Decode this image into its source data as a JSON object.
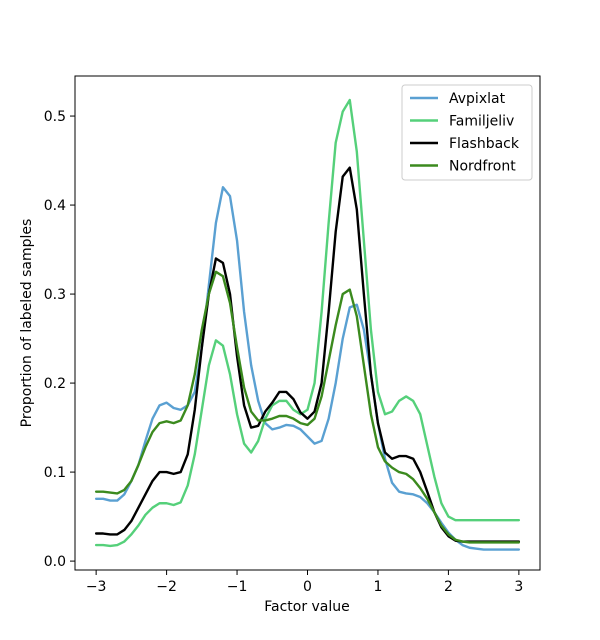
{
  "chart_data": {
    "type": "line",
    "title": "",
    "xlabel": "Factor value",
    "ylabel": "Proportion of labeled samples",
    "xlim": [
      -3.3,
      3.3
    ],
    "ylim": [
      -0.01,
      0.545
    ],
    "xticks": [
      -3,
      -2,
      -1,
      0,
      1,
      2,
      3
    ],
    "yticks": [
      0.0,
      0.1,
      0.2,
      0.3,
      0.4,
      0.5
    ],
    "grid": false,
    "legend": "top-right",
    "x": [
      -3.0,
      -2.9,
      -2.8,
      -2.7,
      -2.6,
      -2.5,
      -2.4,
      -2.3,
      -2.2,
      -2.1,
      -2.0,
      -1.9,
      -1.8,
      -1.7,
      -1.6,
      -1.5,
      -1.4,
      -1.3,
      -1.2,
      -1.1,
      -1.0,
      -0.9,
      -0.8,
      -0.7,
      -0.6,
      -0.5,
      -0.4,
      -0.3,
      -0.2,
      -0.1,
      0.0,
      0.1,
      0.2,
      0.3,
      0.4,
      0.5,
      0.6,
      0.7,
      0.8,
      0.9,
      1.0,
      1.1,
      1.2,
      1.3,
      1.4,
      1.5,
      1.6,
      1.7,
      1.8,
      1.9,
      2.0,
      2.1,
      2.2,
      2.3,
      2.4,
      2.5,
      2.6,
      2.7,
      2.8,
      2.9,
      3.0
    ],
    "series": [
      {
        "name": "Avpixlat",
        "color": "#5aa0d2",
        "values": [
          0.07,
          0.07,
          0.068,
          0.068,
          0.075,
          0.09,
          0.108,
          0.135,
          0.16,
          0.175,
          0.178,
          0.172,
          0.17,
          0.175,
          0.19,
          0.24,
          0.31,
          0.38,
          0.42,
          0.41,
          0.36,
          0.28,
          0.22,
          0.18,
          0.155,
          0.148,
          0.15,
          0.153,
          0.152,
          0.148,
          0.14,
          0.132,
          0.135,
          0.16,
          0.2,
          0.25,
          0.285,
          0.288,
          0.26,
          0.21,
          0.155,
          0.115,
          0.088,
          0.078,
          0.076,
          0.075,
          0.072,
          0.065,
          0.055,
          0.043,
          0.032,
          0.024,
          0.018,
          0.015,
          0.014,
          0.013,
          0.013,
          0.013,
          0.013,
          0.013,
          0.013
        ]
      },
      {
        "name": "Familjeliv",
        "color": "#55d07a",
        "values": [
          0.018,
          0.018,
          0.017,
          0.018,
          0.022,
          0.03,
          0.04,
          0.052,
          0.06,
          0.065,
          0.065,
          0.063,
          0.066,
          0.085,
          0.12,
          0.17,
          0.22,
          0.248,
          0.242,
          0.21,
          0.165,
          0.132,
          0.122,
          0.135,
          0.16,
          0.175,
          0.18,
          0.18,
          0.17,
          0.165,
          0.17,
          0.2,
          0.28,
          0.38,
          0.47,
          0.505,
          0.518,
          0.46,
          0.36,
          0.26,
          0.19,
          0.165,
          0.168,
          0.18,
          0.185,
          0.18,
          0.165,
          0.13,
          0.095,
          0.065,
          0.05,
          0.046,
          0.046,
          0.046,
          0.046,
          0.046,
          0.046,
          0.046,
          0.046,
          0.046,
          0.046
        ]
      },
      {
        "name": "Flashback",
        "color": "#000000",
        "values": [
          0.031,
          0.031,
          0.03,
          0.03,
          0.035,
          0.045,
          0.06,
          0.075,
          0.09,
          0.1,
          0.1,
          0.098,
          0.1,
          0.12,
          0.17,
          0.24,
          0.3,
          0.34,
          0.335,
          0.3,
          0.23,
          0.175,
          0.15,
          0.152,
          0.168,
          0.178,
          0.19,
          0.19,
          0.182,
          0.167,
          0.16,
          0.168,
          0.2,
          0.28,
          0.37,
          0.432,
          0.442,
          0.395,
          0.3,
          0.21,
          0.155,
          0.122,
          0.115,
          0.118,
          0.118,
          0.115,
          0.1,
          0.078,
          0.055,
          0.038,
          0.028,
          0.023,
          0.022,
          0.022,
          0.022,
          0.022,
          0.022,
          0.022,
          0.022,
          0.022,
          0.022
        ]
      },
      {
        "name": "Nordfront",
        "color": "#3b8a1e",
        "values": [
          0.078,
          0.078,
          0.077,
          0.076,
          0.08,
          0.09,
          0.108,
          0.128,
          0.145,
          0.155,
          0.157,
          0.155,
          0.158,
          0.175,
          0.21,
          0.26,
          0.3,
          0.325,
          0.32,
          0.29,
          0.24,
          0.195,
          0.168,
          0.158,
          0.158,
          0.16,
          0.163,
          0.163,
          0.16,
          0.155,
          0.153,
          0.16,
          0.185,
          0.225,
          0.265,
          0.3,
          0.305,
          0.275,
          0.22,
          0.165,
          0.128,
          0.112,
          0.105,
          0.1,
          0.098,
          0.092,
          0.082,
          0.07,
          0.055,
          0.04,
          0.03,
          0.024,
          0.022,
          0.021,
          0.021,
          0.021,
          0.021,
          0.021,
          0.021,
          0.021,
          0.021
        ]
      }
    ]
  }
}
